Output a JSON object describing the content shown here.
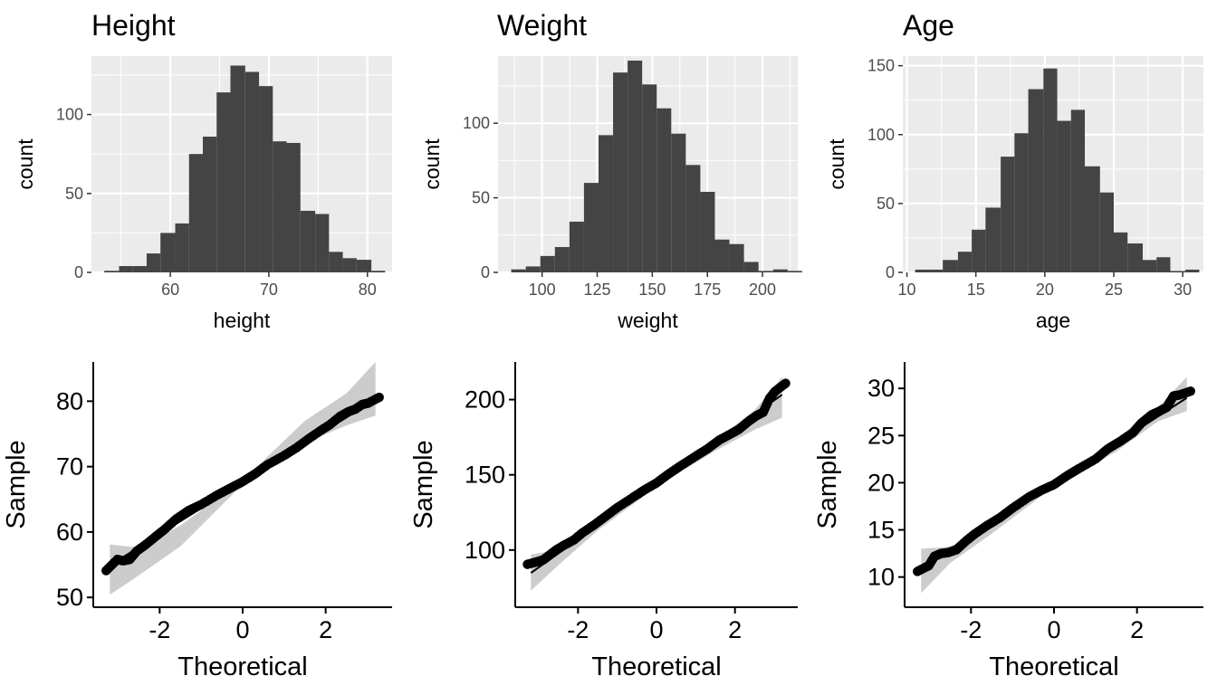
{
  "chart_data": [
    {
      "type": "bar",
      "title": "Height",
      "xlabel": "height",
      "ylabel": "count",
      "xlim": [
        52,
        82.5
      ],
      "ylim": [
        0,
        137
      ],
      "xticks": [
        60,
        70,
        80
      ],
      "yticks": [
        0,
        50,
        100
      ],
      "grid": true,
      "bins": [
        {
          "x0": 53.3,
          "x1": 54.8,
          "value": 1
        },
        {
          "x0": 54.8,
          "x1": 56.2,
          "value": 4
        },
        {
          "x0": 56.2,
          "x1": 57.6,
          "value": 4
        },
        {
          "x0": 57.6,
          "x1": 59.0,
          "value": 12
        },
        {
          "x0": 59.0,
          "x1": 60.5,
          "value": 25
        },
        {
          "x0": 60.5,
          "x1": 61.9,
          "value": 31
        },
        {
          "x0": 61.9,
          "x1": 63.3,
          "value": 75
        },
        {
          "x0": 63.3,
          "x1": 64.7,
          "value": 86
        },
        {
          "x0": 64.7,
          "x1": 66.1,
          "value": 114
        },
        {
          "x0": 66.1,
          "x1": 67.6,
          "value": 131
        },
        {
          "x0": 67.6,
          "x1": 69.0,
          "value": 127
        },
        {
          "x0": 69.0,
          "x1": 70.4,
          "value": 118
        },
        {
          "x0": 70.4,
          "x1": 71.8,
          "value": 83
        },
        {
          "x0": 71.8,
          "x1": 73.2,
          "value": 82
        },
        {
          "x0": 73.2,
          "x1": 74.7,
          "value": 39
        },
        {
          "x0": 74.7,
          "x1": 76.1,
          "value": 37
        },
        {
          "x0": 76.1,
          "x1": 77.5,
          "value": 13
        },
        {
          "x0": 77.5,
          "x1": 78.9,
          "value": 9
        },
        {
          "x0": 78.9,
          "x1": 80.4,
          "value": 8
        },
        {
          "x0": 80.4,
          "x1": 81.8,
          "value": 1
        }
      ]
    },
    {
      "type": "bar",
      "title": "Weight",
      "xlabel": "weight",
      "ylabel": "count",
      "xlim": [
        80,
        216
      ],
      "ylim": [
        0,
        145
      ],
      "xticks": [
        100,
        125,
        150,
        175,
        200
      ],
      "yticks": [
        0,
        50,
        100
      ],
      "grid": true,
      "bins": [
        {
          "x0": 86.0,
          "x1": 92.6,
          "value": 2
        },
        {
          "x0": 92.6,
          "x1": 99.2,
          "value": 4
        },
        {
          "x0": 99.2,
          "x1": 105.8,
          "value": 11
        },
        {
          "x0": 105.8,
          "x1": 112.4,
          "value": 17
        },
        {
          "x0": 112.4,
          "x1": 119.0,
          "value": 34
        },
        {
          "x0": 119.0,
          "x1": 125.6,
          "value": 60
        },
        {
          "x0": 125.6,
          "x1": 132.2,
          "value": 92
        },
        {
          "x0": 132.2,
          "x1": 138.8,
          "value": 134
        },
        {
          "x0": 138.8,
          "x1": 145.4,
          "value": 142
        },
        {
          "x0": 145.4,
          "x1": 152.0,
          "value": 126
        },
        {
          "x0": 152.0,
          "x1": 158.6,
          "value": 110
        },
        {
          "x0": 158.6,
          "x1": 165.2,
          "value": 93
        },
        {
          "x0": 165.2,
          "x1": 171.8,
          "value": 72
        },
        {
          "x0": 171.8,
          "x1": 178.4,
          "value": 54
        },
        {
          "x0": 178.4,
          "x1": 185.0,
          "value": 22
        },
        {
          "x0": 185.0,
          "x1": 191.6,
          "value": 19
        },
        {
          "x0": 191.6,
          "x1": 198.2,
          "value": 7
        },
        {
          "x0": 198.2,
          "x1": 204.8,
          "value": 1
        },
        {
          "x0": 204.8,
          "x1": 211.4,
          "value": 2
        },
        {
          "x0": 211.4,
          "x1": 218.0,
          "value": 1
        }
      ]
    },
    {
      "type": "bar",
      "title": "Age",
      "xlabel": "age",
      "ylabel": "count",
      "xlim": [
        9.7,
        31.5
      ],
      "ylim": [
        0,
        157
      ],
      "xticks": [
        10,
        15,
        20,
        25,
        30
      ],
      "yticks": [
        0,
        50,
        100,
        150
      ],
      "grid": true,
      "bins": [
        {
          "x0": 10.6,
          "x1": 11.6,
          "value": 2
        },
        {
          "x0": 11.6,
          "x1": 12.6,
          "value": 2
        },
        {
          "x0": 12.6,
          "x1": 13.7,
          "value": 9
        },
        {
          "x0": 13.7,
          "x1": 14.7,
          "value": 15
        },
        {
          "x0": 14.7,
          "x1": 15.7,
          "value": 31
        },
        {
          "x0": 15.7,
          "x1": 16.8,
          "value": 47
        },
        {
          "x0": 16.8,
          "x1": 17.8,
          "value": 84
        },
        {
          "x0": 17.8,
          "x1": 18.8,
          "value": 101
        },
        {
          "x0": 18.8,
          "x1": 19.9,
          "value": 133
        },
        {
          "x0": 19.9,
          "x1": 20.9,
          "value": 148
        },
        {
          "x0": 20.9,
          "x1": 21.9,
          "value": 110
        },
        {
          "x0": 21.9,
          "x1": 22.9,
          "value": 118
        },
        {
          "x0": 22.9,
          "x1": 24.0,
          "value": 77
        },
        {
          "x0": 24.0,
          "x1": 25.0,
          "value": 58
        },
        {
          "x0": 25.0,
          "x1": 26.0,
          "value": 29
        },
        {
          "x0": 26.0,
          "x1": 27.1,
          "value": 21
        },
        {
          "x0": 27.1,
          "x1": 28.1,
          "value": 9
        },
        {
          "x0": 28.1,
          "x1": 29.1,
          "value": 11
        },
        {
          "x0": 29.1,
          "x1": 30.2,
          "value": 1
        },
        {
          "x0": 30.2,
          "x1": 31.2,
          "value": 2
        }
      ]
    },
    {
      "type": "scatter",
      "title": "",
      "xlabel": "Theoretical",
      "ylabel": "Sample",
      "xlim": [
        -3.6,
        3.6
      ],
      "ylim": [
        48.5,
        86
      ],
      "xticks": [
        -2,
        0,
        2
      ],
      "yticks": [
        50,
        60,
        70,
        80
      ],
      "grid": false,
      "line": {
        "x": [
          -3.2,
          3.2
        ],
        "y": [
          54.9,
          80.3
        ]
      },
      "band": {
        "x": [
          -3.2,
          -2.5,
          -1.5,
          0,
          1.5,
          2.5,
          3.2
        ],
        "lower": [
          50.4,
          53.4,
          57.8,
          67.3,
          73.6,
          76.3,
          77.8
        ],
        "upper": [
          58.1,
          57.6,
          61.0,
          67.9,
          77.0,
          81.2,
          86.0
        ]
      },
      "points": {
        "x": [
          -3.29,
          -3.02,
          -2.88,
          -2.72,
          -2.55,
          -2.35,
          -2.1,
          -1.9,
          -1.6,
          -1.3,
          -1.0,
          -0.6,
          -0.3,
          0,
          0.3,
          0.6,
          1.0,
          1.3,
          1.6,
          1.9,
          2.1,
          2.35,
          2.55,
          2.72,
          2.88,
          3.02,
          3.29
        ],
        "y": [
          54.1,
          55.8,
          55.6,
          55.8,
          57.1,
          58.0,
          59.3,
          60.3,
          62.0,
          63.3,
          64.2,
          65.7,
          66.7,
          67.7,
          68.9,
          70.3,
          71.7,
          72.9,
          74.3,
          75.6,
          76.4,
          77.7,
          78.4,
          78.8,
          79.5,
          79.7,
          80.6
        ]
      }
    },
    {
      "type": "scatter",
      "title": "",
      "xlabel": "Theoretical",
      "ylabel": "Sample",
      "xlim": [
        -3.6,
        3.6
      ],
      "ylim": [
        62,
        225
      ],
      "xticks": [
        -2,
        0,
        2
      ],
      "yticks": [
        100,
        150,
        200
      ],
      "grid": false,
      "line": {
        "x": [
          -3.2,
          3.2
        ],
        "y": [
          84.8,
          203.2
        ]
      },
      "band": {
        "x": [
          -3.2,
          -2.5,
          -1.5,
          0,
          1.5,
          2.5,
          3.2
        ],
        "lower": [
          73,
          90,
          113,
          142,
          166,
          180,
          188
        ],
        "upper": [
          97,
          100,
          120,
          144,
          173,
          193,
          215
        ]
      },
      "points": {
        "x": [
          -3.29,
          -3.02,
          -2.88,
          -2.72,
          -2.55,
          -2.35,
          -2.1,
          -1.9,
          -1.6,
          -1.3,
          -1.0,
          -0.6,
          -0.3,
          0,
          0.3,
          0.6,
          1.0,
          1.3,
          1.6,
          1.9,
          2.1,
          2.35,
          2.55,
          2.72,
          2.88,
          3.02,
          3.29
        ],
        "y": [
          90.5,
          92.4,
          93.5,
          96.8,
          100.2,
          103.3,
          106.8,
          111.2,
          116.5,
          122.3,
          128.2,
          135.0,
          140.1,
          144.6,
          150.4,
          155.7,
          162.4,
          167.3,
          173.1,
          177.3,
          180.2,
          185.6,
          189.3,
          191.6,
          200.8,
          205.4,
          210.8
        ]
      }
    },
    {
      "type": "scatter",
      "title": "",
      "xlabel": "Theoretical",
      "ylabel": "Sample",
      "xlim": [
        -3.6,
        3.6
      ],
      "ylim": [
        6.8,
        32.8
      ],
      "xticks": [
        -2,
        0,
        2
      ],
      "yticks": [
        10,
        15,
        20,
        25,
        30
      ],
      "grid": false,
      "line": {
        "x": [
          -3.2,
          3.2
        ],
        "y": [
          10.8,
          29.0
        ]
      },
      "band": {
        "x": [
          -3.2,
          -2.5,
          -1.5,
          0,
          1.5,
          2.5,
          3.2
        ],
        "lower": [
          8.3,
          11.5,
          14.6,
          19.6,
          23.3,
          26.5,
          27.6
        ],
        "upper": [
          13.0,
          13.2,
          15.7,
          20.0,
          24.6,
          28.0,
          31.2
        ]
      },
      "points": {
        "x": [
          -3.29,
          -3.02,
          -2.88,
          -2.72,
          -2.55,
          -2.35,
          -2.1,
          -1.9,
          -1.6,
          -1.3,
          -1.0,
          -0.6,
          -0.3,
          0,
          0.3,
          0.6,
          1.0,
          1.3,
          1.6,
          1.9,
          2.1,
          2.35,
          2.55,
          2.72,
          2.88,
          3.02,
          3.29
        ],
        "y": [
          10.6,
          11.2,
          12.2,
          12.5,
          12.6,
          12.9,
          13.9,
          14.6,
          15.5,
          16.3,
          17.3,
          18.5,
          19.2,
          19.8,
          20.7,
          21.5,
          22.5,
          23.6,
          24.4,
          25.3,
          26.3,
          27.2,
          27.6,
          28.0,
          29.2,
          29.3,
          29.7
        ]
      }
    }
  ]
}
